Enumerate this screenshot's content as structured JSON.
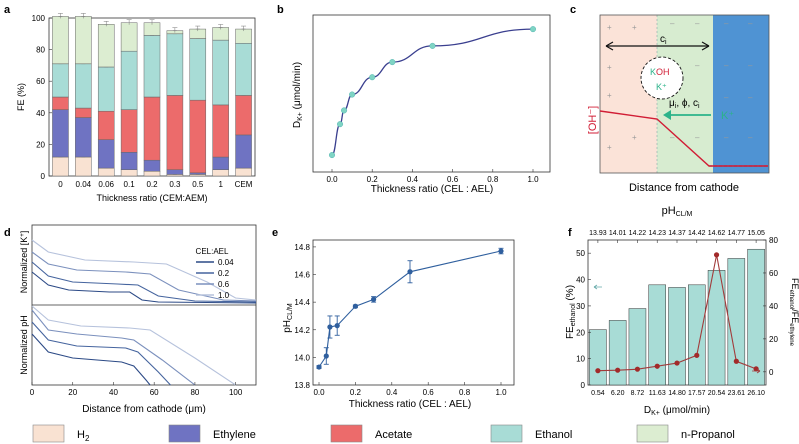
{
  "panel_labels": [
    "a",
    "b",
    "c",
    "d",
    "e",
    "f"
  ],
  "legend": {
    "items": [
      {
        "label": "H",
        "sub": "2",
        "color": "#f9e2d2"
      },
      {
        "label": "Ethylene",
        "sub": "",
        "color": "#6f73c2"
      },
      {
        "label": "Acetate",
        "sub": "",
        "color": "#ec6b6b"
      },
      {
        "label": "Ethanol",
        "sub": "",
        "color": "#a8dcd6"
      },
      {
        "label": "n-Propanol",
        "sub": "",
        "color": "#dcedd1"
      }
    ]
  },
  "chart_data": [
    {
      "panel": "a",
      "type": "bar",
      "stacked": true,
      "title": "",
      "xlabel": "Thickness ratio (CEM:AEM)",
      "ylabel": "FE (%)",
      "ylim": [
        0,
        100
      ],
      "yticks": [
        0,
        20,
        40,
        60,
        80,
        100
      ],
      "categories": [
        "0",
        "0.04",
        "0.06",
        "0.1",
        "0.2",
        "0.3",
        "0.5",
        "1",
        "CEM"
      ],
      "series": [
        {
          "name": "H2",
          "color": "#f9e2d2",
          "values": [
            12,
            12,
            5,
            4,
            3,
            1,
            1,
            4,
            5
          ]
        },
        {
          "name": "Ethylene",
          "color": "#6f73c2",
          "values": [
            30,
            25,
            18,
            11,
            7,
            3,
            1,
            8,
            21
          ]
        },
        {
          "name": "Acetate",
          "color": "#ec6b6b",
          "values": [
            8,
            6,
            18,
            27,
            40,
            47,
            46,
            33,
            25
          ]
        },
        {
          "name": "Ethanol",
          "color": "#a8dcd6",
          "values": [
            21,
            28,
            28,
            37,
            39,
            39,
            39,
            41,
            33
          ]
        },
        {
          "name": "n-Propanol",
          "color": "#dcedd1",
          "values": [
            30,
            30,
            27,
            18,
            8,
            2,
            6,
            8,
            9
          ]
        }
      ]
    },
    {
      "panel": "b",
      "type": "line",
      "xlabel": "Thickness ratio (CEL : AEL)",
      "ylabel_main": "D",
      "ylabel_sub": "K+",
      "ylabel_unit": " (μmol/min)",
      "xlim": [
        0,
        1.0
      ],
      "xticks": [
        "0.0",
        "0.2",
        "0.4",
        "0.6",
        "0.8",
        "1.0"
      ],
      "x": [
        0.0,
        0.04,
        0.06,
        0.1,
        0.2,
        0.3,
        0.5,
        1.0
      ],
      "y": [
        0.54,
        6.2,
        8.72,
        11.63,
        14.8,
        17.57,
        20.54,
        23.61
      ]
    },
    {
      "panel": "c",
      "type": "diagram",
      "xlabel": "Distance from cathode",
      "ylabel": "[OH⁻]",
      "labels": {
        "ci": "c",
        "ci_sub": "i",
        "koh": "KOH",
        "kplus": "K⁺",
        "flux": "μ",
        "flux_sub": "i",
        "flux_rest": ", ϕ, c",
        "kplus_right": "K⁺"
      },
      "colors": {
        "left": "#fbe3d8",
        "mid": "#d7ecd0",
        "right": "#4f93d3",
        "line": "#d11d35",
        "arrow": "#2bb38a"
      }
    },
    {
      "panel": "d",
      "type": "line",
      "xlabel": "Distance from cathode (μm)",
      "ylabel_top_main": "Normalized [K",
      "ylabel_top_sup": "+",
      "ylabel_top_end": "]",
      "ylabel_bottom": "Normalized pH",
      "xlim": [
        0,
        110
      ],
      "xticks": [
        "0",
        "20",
        "40",
        "60",
        "80",
        "100"
      ],
      "legend_title": "CEL:AEL",
      "series": [
        {
          "name": "0.04",
          "color": "#2c4a86"
        },
        {
          "name": "0.2",
          "color": "#45649e"
        },
        {
          "name": "0.6",
          "color": "#7b90bd"
        },
        {
          "name": "1.0",
          "color": "#b6c2dc"
        }
      ]
    },
    {
      "panel": "e",
      "type": "scatter",
      "xlabel": "Thickness ratio (CEL : AEL)",
      "ylabel_main": "pH",
      "ylabel_sub": "CL/M",
      "ylim": [
        13.8,
        14.85
      ],
      "yticks": [
        "13.8",
        "14.0",
        "14.2",
        "14.4",
        "14.6",
        "14.8"
      ],
      "xticks": [
        "0.0",
        "0.2",
        "0.4",
        "0.6",
        "0.8",
        "1.0"
      ],
      "x": [
        0.0,
        0.04,
        0.06,
        0.1,
        0.2,
        0.3,
        0.5,
        1.0
      ],
      "y": [
        13.93,
        14.01,
        14.22,
        14.23,
        14.37,
        14.42,
        14.62,
        14.77
      ],
      "err": [
        0.01,
        0.06,
        0.08,
        0.07,
        0.01,
        0.02,
        0.08,
        0.02
      ]
    },
    {
      "panel": "f",
      "type": "bar",
      "xlabel_main": "D",
      "xlabel_sub": "K+",
      "xlabel_unit": " (μmol/min)",
      "top_label_main": "pH",
      "top_label_sub": "CL/M",
      "ylabel_left_main": "FE",
      "ylabel_left_sub": "ethanol",
      "ylabel_left_unit": " (%)",
      "ylabel_right": "FE",
      "ylabel_right_sub1": "ethanol",
      "ylabel_right_mid": "/FE",
      "ylabel_right_sub2": "ethylene",
      "categories": [
        "0.54",
        "6.20",
        "8.72",
        "11.63",
        "14.80",
        "17.57",
        "20.54",
        "23.61",
        "26.10"
      ],
      "top_ticks": [
        "13.93",
        "14.01",
        "14.22",
        "14.23",
        "14.37",
        "14.42",
        "14.62",
        "14.77",
        "15.05"
      ],
      "ylim_left": [
        0,
        55
      ],
      "yticks_left": [
        "0",
        "10",
        "20",
        "30",
        "40",
        "50"
      ],
      "ylim_right": [
        -8,
        80
      ],
      "yticks_right": [
        "0",
        "20",
        "40",
        "60",
        "80"
      ],
      "bar_values": [
        21,
        24.5,
        29,
        38,
        37,
        38,
        43.5,
        48,
        51.5
      ],
      "ratio_values": [
        0.7,
        1.0,
        1.6,
        3.4,
        5.3,
        10.0,
        71,
        6.4,
        1.8
      ]
    }
  ]
}
